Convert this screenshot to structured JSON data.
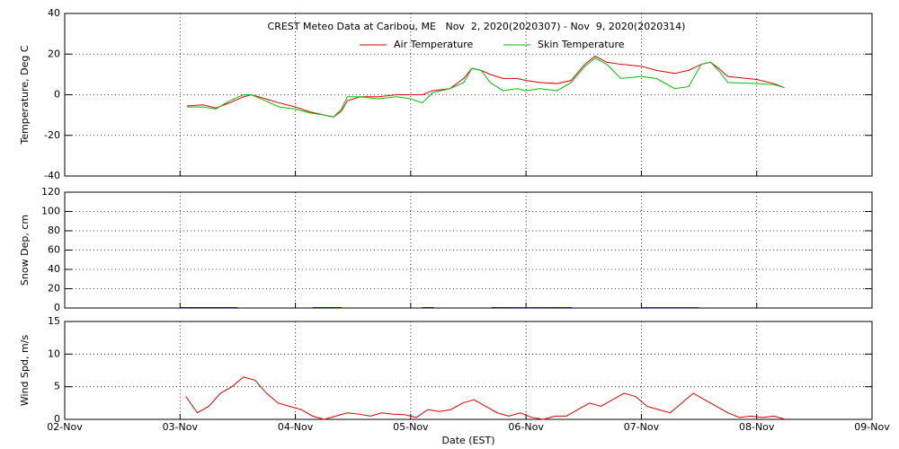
{
  "chart_data": [
    {
      "type": "line",
      "title": "CREST Meteo Data at Caribou, ME   Nov  2, 2020(2020307) - Nov  9, 2020(2020314)",
      "ylabel": "Temperature, Deg C",
      "xlim": [
        2,
        9
      ],
      "xticks": [
        2,
        3,
        4,
        5,
        6,
        7,
        8,
        9
      ],
      "ylim": [
        -40,
        40
      ],
      "yticks": [
        -40,
        -20,
        0,
        20,
        40
      ],
      "grid": true,
      "series": [
        {
          "name": "Air Temperature",
          "color": "#e00000",
          "x": [
            3.06,
            3.2,
            3.31,
            3.43,
            3.55,
            3.62,
            3.74,
            3.86,
            4.0,
            4.13,
            4.25,
            4.33,
            4.4,
            4.45,
            4.56,
            4.72,
            4.88,
            5.0,
            5.1,
            5.19,
            5.34,
            5.46,
            5.53,
            5.61,
            5.69,
            5.8,
            5.92,
            6.0,
            6.12,
            6.27,
            6.39,
            6.51,
            6.6,
            6.7,
            6.82,
            7.0,
            7.13,
            7.29,
            7.41,
            7.52,
            7.6,
            7.67,
            7.75,
            8.0,
            8.15,
            8.24
          ],
          "values": [
            -5.5,
            -5,
            -6.5,
            -4,
            -1,
            0,
            -2,
            -4,
            -6,
            -8.5,
            -10,
            -11,
            -8,
            -3,
            -1,
            -1,
            0,
            0,
            0,
            2,
            3,
            8,
            13,
            12,
            10,
            8,
            8,
            7,
            6,
            5.5,
            7,
            15,
            19,
            16,
            15,
            14,
            12,
            10.5,
            12,
            15,
            16,
            13,
            9,
            7.5,
            5.5,
            3.5
          ]
        },
        {
          "name": "Skin Temperature",
          "color": "#00c000",
          "x": [
            3.06,
            3.2,
            3.31,
            3.43,
            3.55,
            3.62,
            3.74,
            3.86,
            4.0,
            4.13,
            4.25,
            4.33,
            4.4,
            4.45,
            4.56,
            4.72,
            4.88,
            5.0,
            5.1,
            5.19,
            5.34,
            5.46,
            5.53,
            5.61,
            5.69,
            5.8,
            5.92,
            6.0,
            6.12,
            6.27,
            6.39,
            6.51,
            6.6,
            6.7,
            6.82,
            7.0,
            7.13,
            7.29,
            7.41,
            7.52,
            7.6,
            7.67,
            7.75,
            8.0,
            8.15,
            8.24
          ],
          "values": [
            -6,
            -6,
            -7,
            -3,
            0,
            0,
            -3,
            -6,
            -7,
            -9,
            -10,
            -11,
            -7,
            -1,
            -1,
            -2,
            -1,
            -2,
            -4,
            1,
            3,
            6,
            13,
            12,
            6,
            2,
            3,
            2,
            3,
            2,
            6,
            14,
            18,
            15,
            8,
            9,
            8,
            3,
            4,
            15,
            16,
            12,
            6,
            5.5,
            5,
            3.5
          ]
        }
      ]
    },
    {
      "type": "line",
      "ylabel": "Snow Dep, cm",
      "xlim": [
        2,
        9
      ],
      "xticks": [
        2,
        3,
        4,
        5,
        6,
        7,
        8,
        9
      ],
      "ylim": [
        0,
        120
      ],
      "yticks": [
        0,
        20,
        40,
        60,
        80,
        100,
        120
      ],
      "grid": true,
      "series": [
        {
          "color": "#0000cc",
          "x": [
            3.0,
            3.25,
            3.5,
            3.6,
            4.15,
            4.4,
            4.5,
            5.1,
            5.2,
            5.3,
            5.7,
            6.0,
            6.4,
            6.5,
            7.0,
            7.5
          ],
          "values": [
            0.5,
            0.5,
            0.5,
            null,
            0.5,
            0.5,
            null,
            0.5,
            0.5,
            null,
            0.5,
            0.3,
            0.5,
            null,
            0.3,
            0.3
          ]
        }
      ]
    },
    {
      "type": "line",
      "ylabel": "Wind Spd, m/s",
      "xlabel": "Date (EST)",
      "xlim": [
        2,
        9
      ],
      "xticks": [
        {
          "value": 2,
          "label": "02-Nov"
        },
        {
          "value": 3,
          "label": "03-Nov"
        },
        {
          "value": 4,
          "label": "04-Nov"
        },
        {
          "value": 5,
          "label": "05-Nov"
        },
        {
          "value": 6,
          "label": "06-Nov"
        },
        {
          "value": 7,
          "label": "07-Nov"
        },
        {
          "value": 8,
          "label": "08-Nov"
        },
        {
          "value": 9,
          "label": "09-Nov"
        }
      ],
      "ylim": [
        0,
        15
      ],
      "yticks": [
        0,
        5,
        10,
        15
      ],
      "grid": true,
      "series": [
        {
          "color": "#e00000",
          "x": [
            3.05,
            3.15,
            3.25,
            3.35,
            3.45,
            3.55,
            3.65,
            3.75,
            3.85,
            3.95,
            4.05,
            4.15,
            4.25,
            4.35,
            4.45,
            4.55,
            4.65,
            4.75,
            4.85,
            4.95,
            5.05,
            5.15,
            5.25,
            5.35,
            5.45,
            5.55,
            5.65,
            5.75,
            5.85,
            5.95,
            6.05,
            6.15,
            6.25,
            6.35,
            6.45,
            6.55,
            6.65,
            6.75,
            6.85,
            6.95,
            7.05,
            7.15,
            7.25,
            7.35,
            7.45,
            7.55,
            7.65,
            7.75,
            7.85,
            7.95,
            8.05,
            8.15,
            8.25
          ],
          "values": [
            3.5,
            1,
            2,
            4,
            5,
            6.5,
            6,
            4,
            2.5,
            2,
            1.5,
            0.5,
            0,
            0.5,
            1,
            0.8,
            0.5,
            1,
            0.8,
            0.7,
            0.3,
            1.5,
            1.2,
            1.5,
            2.5,
            3,
            2,
            1,
            0.5,
            1,
            0.3,
            0,
            0.5,
            0.5,
            1.5,
            2.5,
            2,
            3,
            4,
            3.5,
            2,
            1.5,
            1,
            2.5,
            4,
            3,
            2,
            1,
            0.3,
            0.5,
            0.3,
            0.5,
            0
          ]
        }
      ]
    }
  ]
}
